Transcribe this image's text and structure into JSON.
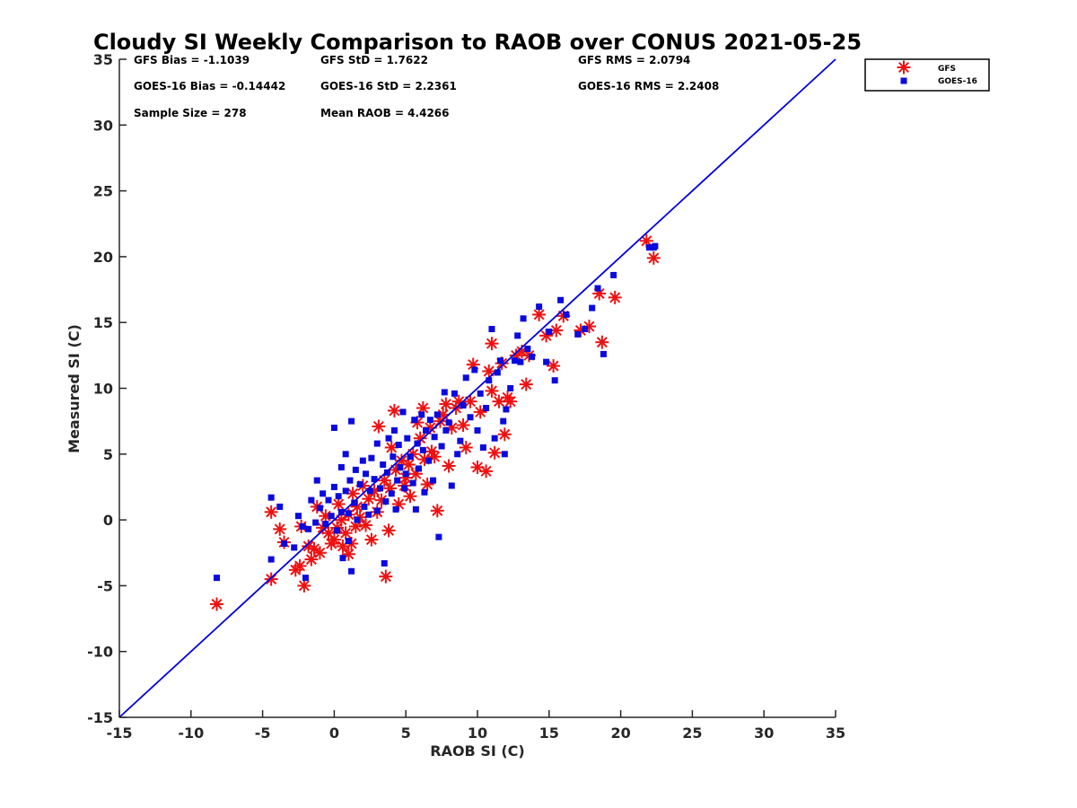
{
  "chart_data": {
    "type": "scatter",
    "title": "Cloudy SI Weekly Comparison to RAOB over CONUS 2021-05-25",
    "xlabel": "RAOB SI (C)",
    "ylabel": "Measured SI (C)",
    "xlim": [
      -15,
      35
    ],
    "ylim": [
      -15,
      35
    ],
    "xticks": [
      -15,
      -10,
      -5,
      0,
      5,
      10,
      15,
      20,
      25,
      30,
      35
    ],
    "yticks": [
      -15,
      -10,
      -5,
      0,
      5,
      10,
      15,
      20,
      25,
      30,
      35
    ],
    "grid": false,
    "legend_position": "outside-top-right",
    "stats": [
      {
        "id": "gfs_bias",
        "text": "GFS Bias = -1.1039"
      },
      {
        "id": "gfs_std",
        "text": "GFS StD = 1.7622"
      },
      {
        "id": "gfs_rms",
        "text": "GFS RMS = 2.0794"
      },
      {
        "id": "goes_bias",
        "text": "GOES-16 Bias = -0.14442"
      },
      {
        "id": "goes_std",
        "text": "GOES-16 StD = 2.2361"
      },
      {
        "id": "goes_rms",
        "text": "GOES-16 RMS = 2.2408"
      },
      {
        "id": "sample_size",
        "text": "Sample Size = 278"
      },
      {
        "id": "mean_raob",
        "text": "Mean RAOB = 4.4266"
      }
    ],
    "reference_line": {
      "x": [
        -15,
        35
      ],
      "y": [
        -15,
        35
      ],
      "color": "#0000dd"
    },
    "series": [
      {
        "name": "GFS",
        "marker": "asterisk",
        "color": "#ee1111",
        "points": [
          [
            -8.2,
            -6.4
          ],
          [
            -4.4,
            0.6
          ],
          [
            -4.4,
            -4.5
          ],
          [
            -3.8,
            -0.7
          ],
          [
            -3.5,
            -1.7
          ],
          [
            -2.7,
            -3.8
          ],
          [
            -2.4,
            -3.5
          ],
          [
            -2.3,
            -0.5
          ],
          [
            -2.1,
            -5.0
          ],
          [
            -1.8,
            -2.0
          ],
          [
            -1.6,
            -3.0
          ],
          [
            -1.4,
            -2.2
          ],
          [
            -1.2,
            1.0
          ],
          [
            -1.0,
            -2.5
          ],
          [
            -0.8,
            -0.6
          ],
          [
            -0.6,
            0.3
          ],
          [
            -0.4,
            -1.0
          ],
          [
            -0.2,
            -1.8
          ],
          [
            0.0,
            -1.5
          ],
          [
            0.2,
            -0.6
          ],
          [
            0.3,
            1.2
          ],
          [
            0.5,
            0.0
          ],
          [
            0.6,
            -2.0
          ],
          [
            0.8,
            -1.0
          ],
          [
            1.0,
            -2.6
          ],
          [
            1.0,
            0.4
          ],
          [
            1.2,
            -1.8
          ],
          [
            1.3,
            2.0
          ],
          [
            1.5,
            -0.5
          ],
          [
            1.6,
            1.0
          ],
          [
            1.8,
            0.2
          ],
          [
            2.0,
            2.6
          ],
          [
            2.2,
            -0.4
          ],
          [
            2.4,
            1.6
          ],
          [
            2.6,
            -1.5
          ],
          [
            2.8,
            2.2
          ],
          [
            3.0,
            0.6
          ],
          [
            3.1,
            7.1
          ],
          [
            3.3,
            1.5
          ],
          [
            3.5,
            3.0
          ],
          [
            3.6,
            -4.3
          ],
          [
            3.8,
            -0.8
          ],
          [
            3.9,
            2.4
          ],
          [
            4.0,
            5.5
          ],
          [
            4.2,
            8.3
          ],
          [
            4.3,
            3.8
          ],
          [
            4.5,
            1.2
          ],
          [
            4.7,
            4.5
          ],
          [
            4.9,
            2.6
          ],
          [
            5.0,
            3.2
          ],
          [
            5.2,
            4.2
          ],
          [
            5.3,
            1.8
          ],
          [
            5.5,
            5.0
          ],
          [
            5.7,
            3.5
          ],
          [
            5.8,
            7.4
          ],
          [
            6.0,
            6.2
          ],
          [
            6.2,
            8.5
          ],
          [
            6.3,
            4.6
          ],
          [
            6.5,
            2.7
          ],
          [
            6.7,
            7.0
          ],
          [
            6.8,
            5.2
          ],
          [
            7.0,
            4.8
          ],
          [
            7.2,
            0.7
          ],
          [
            7.4,
            7.5
          ],
          [
            7.6,
            8.0
          ],
          [
            7.8,
            8.8
          ],
          [
            8.0,
            4.1
          ],
          [
            8.2,
            7.0
          ],
          [
            8.5,
            8.5
          ],
          [
            8.7,
            9.0
          ],
          [
            9.0,
            7.2
          ],
          [
            9.2,
            5.5
          ],
          [
            9.5,
            9.0
          ],
          [
            9.7,
            11.8
          ],
          [
            10.0,
            4.0
          ],
          [
            10.2,
            8.2
          ],
          [
            10.6,
            3.7
          ],
          [
            10.8,
            11.3
          ],
          [
            11.0,
            13.4
          ],
          [
            11.0,
            9.8
          ],
          [
            11.2,
            5.1
          ],
          [
            11.5,
            9.0
          ],
          [
            11.7,
            11.9
          ],
          [
            11.9,
            6.5
          ],
          [
            12.1,
            9.3
          ],
          [
            12.3,
            9.0
          ],
          [
            12.7,
            12.5
          ],
          [
            13.1,
            12.8
          ],
          [
            13.4,
            10.3
          ],
          [
            13.6,
            12.5
          ],
          [
            14.3,
            15.6
          ],
          [
            14.8,
            14.0
          ],
          [
            15.3,
            11.7
          ],
          [
            15.5,
            14.4
          ],
          [
            16.0,
            15.5
          ],
          [
            17.2,
            14.4
          ],
          [
            17.8,
            14.7
          ],
          [
            18.5,
            17.2
          ],
          [
            18.7,
            13.5
          ],
          [
            19.6,
            16.9
          ],
          [
            21.8,
            21.2
          ],
          [
            22.3,
            19.9
          ]
        ]
      },
      {
        "name": "GOES-16",
        "marker": "square",
        "color": "#0a0ae0",
        "points": [
          [
            -8.2,
            -4.4
          ],
          [
            -4.4,
            1.7
          ],
          [
            -4.4,
            -3.0
          ],
          [
            -3.8,
            1.0
          ],
          [
            -3.5,
            -1.8
          ],
          [
            -2.8,
            -2.1
          ],
          [
            -2.5,
            0.3
          ],
          [
            -2.2,
            -0.5
          ],
          [
            -2.0,
            -4.4
          ],
          [
            -1.8,
            -0.7
          ],
          [
            -1.6,
            1.5
          ],
          [
            -1.3,
            -0.2
          ],
          [
            -1.2,
            3.0
          ],
          [
            -1.0,
            0.9
          ],
          [
            -0.8,
            2.0
          ],
          [
            -0.6,
            -0.3
          ],
          [
            -0.4,
            1.5
          ],
          [
            -0.2,
            0.3
          ],
          [
            0.0,
            2.5
          ],
          [
            0.0,
            7.0
          ],
          [
            0.2,
            -0.8
          ],
          [
            0.3,
            1.8
          ],
          [
            0.5,
            0.6
          ],
          [
            0.5,
            4.0
          ],
          [
            0.6,
            -2.9
          ],
          [
            0.8,
            2.2
          ],
          [
            0.8,
            5.0
          ],
          [
            1.0,
            0.5
          ],
          [
            1.0,
            -1.6
          ],
          [
            1.1,
            3.0
          ],
          [
            1.2,
            7.5
          ],
          [
            1.2,
            -3.9
          ],
          [
            1.4,
            1.3
          ],
          [
            1.5,
            3.8
          ],
          [
            1.6,
            0.0
          ],
          [
            1.8,
            2.7
          ],
          [
            2.0,
            4.5
          ],
          [
            2.1,
            1.0
          ],
          [
            2.2,
            3.5
          ],
          [
            2.4,
            0.4
          ],
          [
            2.5,
            2.2
          ],
          [
            2.6,
            4.7
          ],
          [
            2.8,
            3.1
          ],
          [
            3.0,
            0.7
          ],
          [
            3.0,
            5.8
          ],
          [
            3.2,
            2.4
          ],
          [
            3.4,
            4.2
          ],
          [
            3.5,
            -3.3
          ],
          [
            3.6,
            1.4
          ],
          [
            3.7,
            3.6
          ],
          [
            3.8,
            6.2
          ],
          [
            4.0,
            2.0
          ],
          [
            4.1,
            4.8
          ],
          [
            4.2,
            6.8
          ],
          [
            4.3,
            0.8
          ],
          [
            4.4,
            3.0
          ],
          [
            4.5,
            5.7
          ],
          [
            4.6,
            4.0
          ],
          [
            4.8,
            8.2
          ],
          [
            4.9,
            2.4
          ],
          [
            5.0,
            3.5
          ],
          [
            5.1,
            6.2
          ],
          [
            5.3,
            4.8
          ],
          [
            5.5,
            2.8
          ],
          [
            5.6,
            7.6
          ],
          [
            5.7,
            0.8
          ],
          [
            5.8,
            5.8
          ],
          [
            5.9,
            3.9
          ],
          [
            6.1,
            8.0
          ],
          [
            6.2,
            5.3
          ],
          [
            6.3,
            2.1
          ],
          [
            6.4,
            6.8
          ],
          [
            6.6,
            4.5
          ],
          [
            6.7,
            7.6
          ],
          [
            6.9,
            3.0
          ],
          [
            7.0,
            6.3
          ],
          [
            7.2,
            8.0
          ],
          [
            7.3,
            -1.3
          ],
          [
            7.5,
            5.6
          ],
          [
            7.7,
            9.7
          ],
          [
            7.8,
            6.8
          ],
          [
            8.0,
            7.4
          ],
          [
            8.2,
            2.6
          ],
          [
            8.4,
            9.6
          ],
          [
            8.6,
            5.0
          ],
          [
            8.8,
            6.0
          ],
          [
            9.0,
            8.7
          ],
          [
            9.2,
            10.8
          ],
          [
            9.5,
            7.8
          ],
          [
            9.8,
            11.4
          ],
          [
            10.0,
            6.8
          ],
          [
            10.2,
            9.6
          ],
          [
            10.4,
            5.5
          ],
          [
            10.6,
            8.5
          ],
          [
            10.8,
            10.6
          ],
          [
            11.0,
            14.5
          ],
          [
            11.2,
            6.2
          ],
          [
            11.4,
            11.2
          ],
          [
            11.6,
            12.1
          ],
          [
            11.8,
            7.5
          ],
          [
            11.9,
            5.0
          ],
          [
            12.0,
            8.4
          ],
          [
            12.3,
            10.0
          ],
          [
            12.6,
            12.1
          ],
          [
            12.8,
            14.0
          ],
          [
            13.0,
            12.0
          ],
          [
            13.2,
            15.3
          ],
          [
            13.5,
            13.0
          ],
          [
            13.8,
            12.4
          ],
          [
            14.3,
            16.2
          ],
          [
            14.8,
            12.0
          ],
          [
            15.0,
            14.3
          ],
          [
            15.4,
            10.6
          ],
          [
            15.8,
            16.7
          ],
          [
            16.2,
            15.6
          ],
          [
            17.0,
            14.1
          ],
          [
            17.5,
            14.5
          ],
          [
            18.0,
            16.1
          ],
          [
            18.4,
            17.6
          ],
          [
            18.8,
            12.6
          ],
          [
            19.5,
            18.6
          ],
          [
            22.0,
            20.7
          ],
          [
            22.3,
            20.7
          ],
          [
            22.4,
            20.8
          ]
        ]
      }
    ]
  }
}
